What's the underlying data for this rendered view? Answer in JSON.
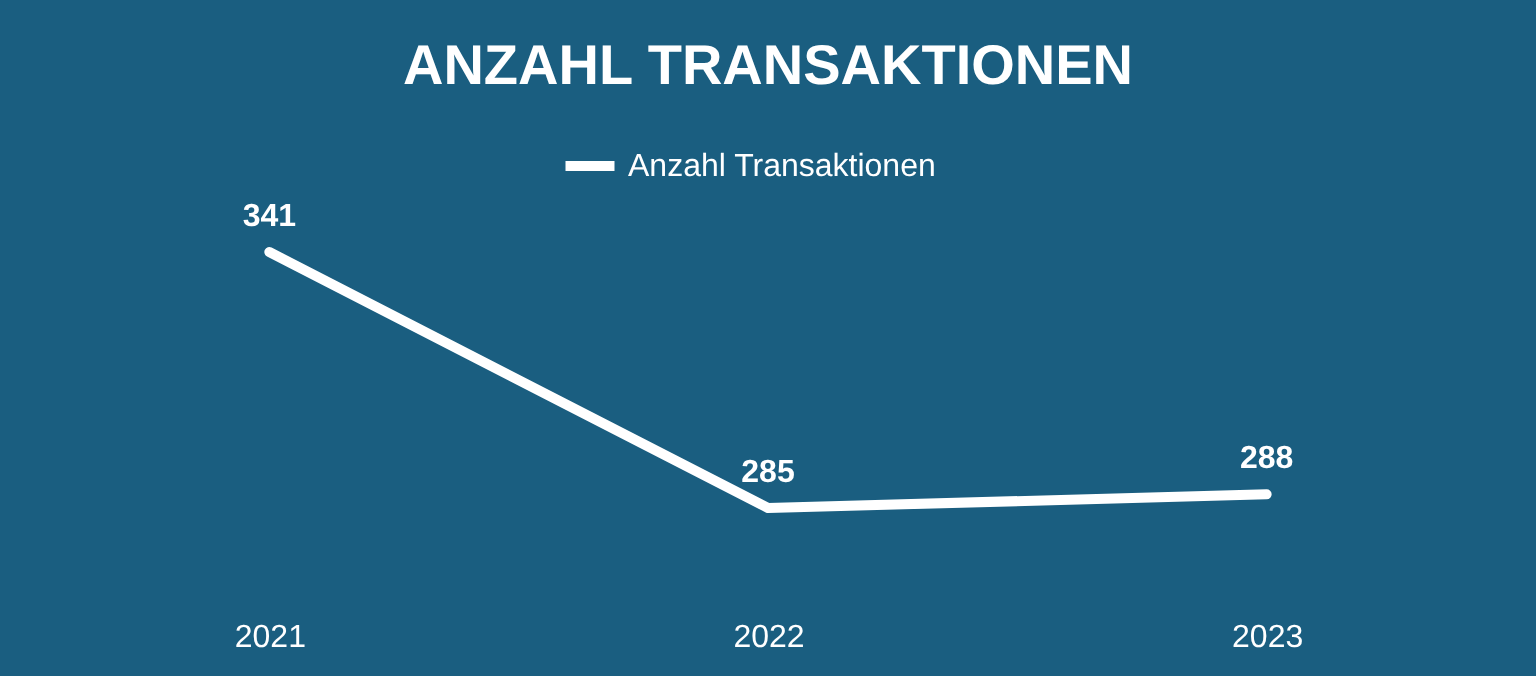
{
  "chart_data": {
    "type": "line",
    "title": "ANZAHL TRANSAKTIONEN",
    "categories": [
      "2021",
      "2022",
      "2023"
    ],
    "series": [
      {
        "name": "Anzahl Transaktionen",
        "color": "#ffffff",
        "values": [
          341,
          285,
          288
        ]
      }
    ],
    "data_labels": true,
    "legend": "top",
    "grid": false
  }
}
